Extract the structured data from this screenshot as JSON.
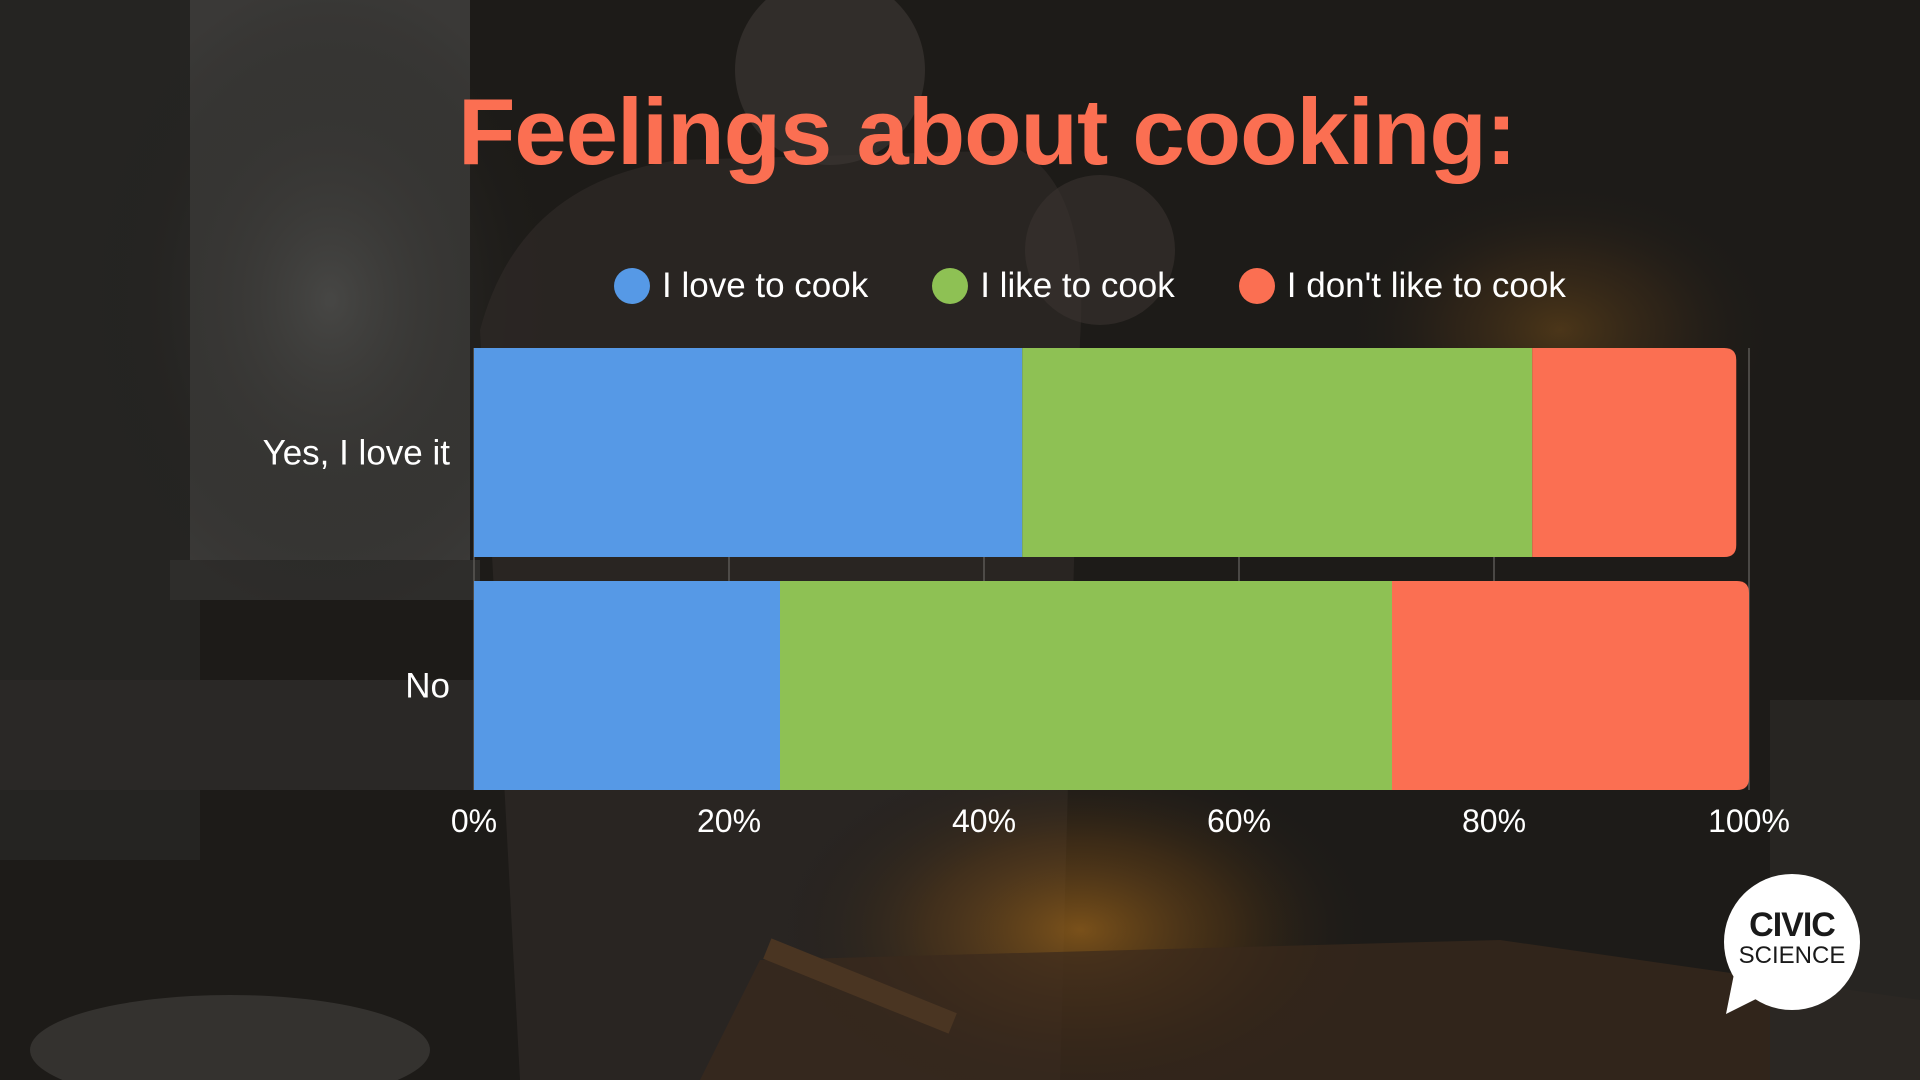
{
  "title": "Feelings about cooking:",
  "logo": {
    "line1": "CIVIC",
    "line2": "SCIENCE"
  },
  "colors": {
    "title": "#fb6f52",
    "love": "#5699e6",
    "like": "#8ec154",
    "dislike": "#fb6f52"
  },
  "chart_data": {
    "type": "bar",
    "orientation": "horizontal",
    "stacked": true,
    "categories": [
      "Yes, I love it",
      "No"
    ],
    "series": [
      {
        "name": "I love to cook",
        "color": "#5699e6",
        "values": [
          43,
          24
        ]
      },
      {
        "name": "I like to cook",
        "color": "#8ec154",
        "values": [
          40,
          48
        ]
      },
      {
        "name": "I don't like to cook",
        "color": "#fb6f52",
        "values": [
          16,
          28
        ]
      }
    ],
    "xlim": [
      0,
      100
    ],
    "xticks": [
      "0%",
      "20%",
      "40%",
      "60%",
      "80%",
      "100%"
    ],
    "legend_position": "top",
    "grid": true
  }
}
